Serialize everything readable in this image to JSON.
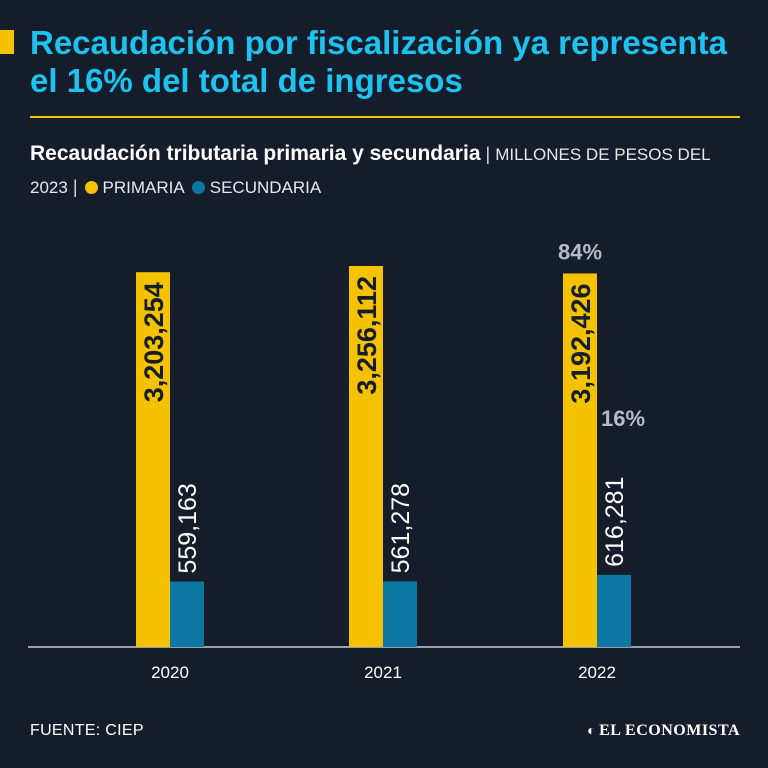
{
  "headline": "Recaudación por fiscalización ya representa el 16% del total de ingresos",
  "subtitle": {
    "title": "Recaudación tributaria primaria y secundaria",
    "separator": "|",
    "units": "MILLONES DE PESOS DEL 2023",
    "legend_separator": "|"
  },
  "colors": {
    "primaria": "#f5c200",
    "secundaria": "#0c77a3",
    "background": "#151d2a",
    "headline": "#1ec2f0",
    "annotation": "#b5bcc6"
  },
  "chart_data": {
    "type": "bar",
    "categories": [
      "2020",
      "2021",
      "2022"
    ],
    "series": [
      {
        "name": "PRIMARIA",
        "values": [
          3203254,
          3256112,
          3192426
        ],
        "labels": [
          "3,203,254",
          "3,256,112",
          "3,192,426"
        ]
      },
      {
        "name": "SECUNDARIA",
        "values": [
          559163,
          561278,
          616281
        ],
        "labels": [
          "559,163",
          "561,278",
          "616,281"
        ]
      }
    ],
    "annotations": [
      {
        "category": "2022",
        "series": "PRIMARIA",
        "text": "84%"
      },
      {
        "category": "2022",
        "series": "SECUNDARIA",
        "text": "16%"
      }
    ],
    "ylim": [
      0,
      3256112
    ],
    "grid": false,
    "legend": "subtitle"
  },
  "footer": {
    "source": "FUENTE: CIEP",
    "brand": "EL ECONOMISTA"
  }
}
